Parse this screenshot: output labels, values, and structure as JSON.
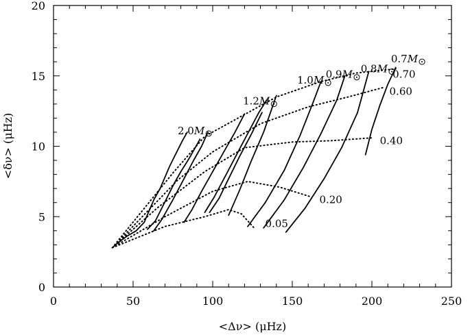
{
  "chart_data": {
    "type": "line",
    "title": "",
    "xlabel": "<Δν> (μHz)",
    "ylabel": "<δν> (μHz)",
    "xlim": [
      0,
      250
    ],
    "ylim": [
      0,
      20
    ],
    "xticks_major": [
      0,
      50,
      100,
      150,
      200,
      250
    ],
    "yticks_major": [
      0,
      5,
      10,
      15,
      20
    ],
    "xticks_minor_step": 10,
    "yticks_minor_step": 1,
    "grid": false,
    "legend": "none",
    "mass_tracks": [
      {
        "label": "0.7M",
        "label_at": [
          212,
          16.2
        ],
        "points": [
          [
            196,
            9.4
          ],
          [
            200,
            11.2
          ],
          [
            205,
            12.9
          ],
          [
            210,
            14.4
          ],
          [
            215,
            15.6
          ]
        ]
      },
      {
        "label": "0.8M",
        "label_at": [
          193,
          15.5
        ],
        "points": [
          [
            146,
            3.9
          ],
          [
            158,
            5.6
          ],
          [
            170,
            7.7
          ],
          [
            181,
            9.9
          ],
          [
            191,
            12.4
          ],
          [
            198,
            15.3
          ]
        ]
      },
      {
        "label": "0.9M",
        "label_at": [
          171,
          15.1
        ],
        "points": [
          [
            132,
            4.2
          ],
          [
            145,
            6.2
          ],
          [
            157,
            8.5
          ],
          [
            168,
            10.9
          ],
          [
            178,
            13.3
          ],
          [
            183,
            15.0
          ]
        ]
      },
      {
        "label": "1.0M",
        "label_at": [
          153,
          14.7
        ],
        "points": [
          [
            122,
            4.3
          ],
          [
            133,
            6.0
          ],
          [
            145,
            8.3
          ],
          [
            155,
            10.8
          ],
          [
            163,
            13.1
          ],
          [
            168,
            14.6
          ]
        ]
      },
      {
        "label": "1.2M",
        "label_at": [
          119,
          13.2
        ],
        "points": [
          [
            110,
            5.1
          ],
          [
            117,
            6.9
          ],
          [
            124,
            8.9
          ],
          [
            132,
            11.0
          ],
          [
            140,
            13.6
          ]
        ]
      },
      {
        "label": "2.0M",
        "label_at": [
          78,
          11.1
        ],
        "points": [
          [
            37,
            2.8
          ],
          [
            40,
            3.1
          ],
          [
            46,
            3.6
          ],
          [
            52,
            4.0
          ],
          [
            57,
            4.6
          ],
          [
            60,
            5.4
          ],
          [
            63,
            6.2
          ],
          [
            67,
            7.0
          ],
          [
            70,
            7.8
          ],
          [
            73,
            8.6
          ],
          [
            77,
            9.5
          ],
          [
            81,
            10.4
          ],
          [
            84,
            11.0
          ]
        ]
      }
    ],
    "mass_tracks_unlabeled": [
      {
        "points": [
          [
            59,
            4.1
          ],
          [
            64,
            4.7
          ],
          [
            68,
            5.6
          ],
          [
            72,
            6.5
          ],
          [
            76,
            7.4
          ],
          [
            80,
            8.2
          ],
          [
            85,
            9.1
          ],
          [
            89,
            9.9
          ],
          [
            92,
            10.5
          ]
        ]
      },
      {
        "points": [
          [
            63,
            4.0
          ],
          [
            68,
            4.8
          ],
          [
            75,
            6.2
          ],
          [
            82,
            7.7
          ],
          [
            88,
            9.0
          ],
          [
            93,
            10.0
          ],
          [
            97,
            11.0
          ]
        ]
      },
      {
        "points": [
          [
            82,
            4.6
          ],
          [
            87,
            5.5
          ],
          [
            93,
            6.8
          ],
          [
            100,
            8.2
          ],
          [
            107,
            9.6
          ],
          [
            114,
            11.0
          ],
          [
            120,
            12.3
          ]
        ]
      },
      {
        "points": [
          [
            95,
            5.3
          ],
          [
            101,
            6.4
          ],
          [
            108,
            7.9
          ],
          [
            115,
            9.4
          ],
          [
            122,
            10.9
          ],
          [
            129,
            12.4
          ],
          [
            134,
            13.3
          ]
        ]
      },
      {
        "points": [
          [
            98,
            5.3
          ],
          [
            104,
            6.3
          ],
          [
            110,
            7.7
          ],
          [
            117,
            9.3
          ],
          [
            124,
            10.8
          ],
          [
            131,
            12.4
          ]
        ]
      }
    ],
    "isochrones": [
      {
        "label": "0.70",
        "label_at": [
          213,
          15.1
        ],
        "points": [
          [
            37,
            2.8
          ],
          [
            75,
            8.1
          ],
          [
            95,
            10.7
          ],
          [
            140,
            13.5
          ],
          [
            168,
            14.6
          ],
          [
            190,
            15.2
          ],
          [
            215,
            15.5
          ]
        ]
      },
      {
        "label": "0.60",
        "label_at": [
          211,
          13.9
        ],
        "points": [
          [
            37,
            2.8
          ],
          [
            78,
            7.6
          ],
          [
            100,
            9.6
          ],
          [
            130,
            11.6
          ],
          [
            160,
            12.8
          ],
          [
            185,
            13.5
          ],
          [
            208,
            14.2
          ]
        ]
      },
      {
        "label": "0.40",
        "label_at": [
          205,
          10.4
        ],
        "points": [
          [
            37,
            2.8
          ],
          [
            65,
            5.6
          ],
          [
            95,
            8.2
          ],
          [
            120,
            9.9
          ],
          [
            150,
            10.3
          ],
          [
            175,
            10.4
          ],
          [
            200,
            10.6
          ]
        ]
      },
      {
        "label": "0.20",
        "label_at": [
          167,
          6.2
        ],
        "points": [
          [
            37,
            2.8
          ],
          [
            70,
            5.0
          ],
          [
            100,
            6.8
          ],
          [
            122,
            7.5
          ],
          [
            142,
            7.1
          ],
          [
            162,
            6.4
          ]
        ]
      },
      {
        "label": "0.05",
        "label_at": [
          133,
          4.5
        ],
        "points": [
          [
            37,
            2.8
          ],
          [
            70,
            4.3
          ],
          [
            95,
            5.0
          ],
          [
            110,
            5.5
          ],
          [
            118,
            5.2
          ],
          [
            126,
            4.2
          ]
        ]
      }
    ]
  }
}
